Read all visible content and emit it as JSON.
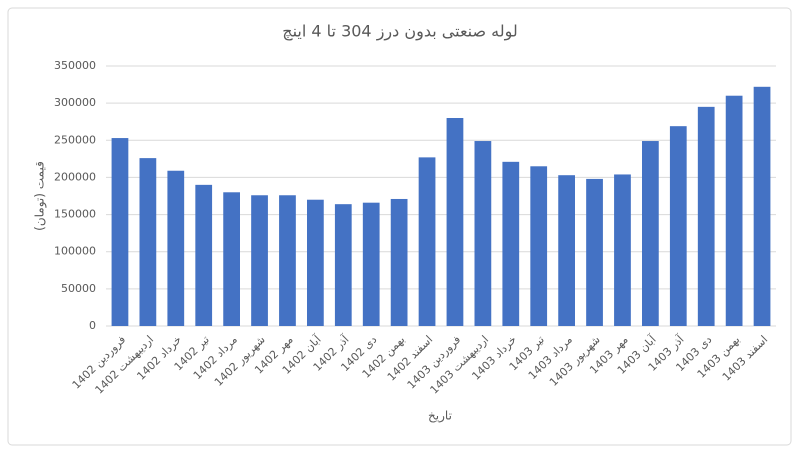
{
  "chart_data": {
    "type": "bar",
    "title": "لوله صنعتی بدون درز 304 تا 4 اینچ",
    "y_label": "قیمت (تومان)",
    "x_label": "تاریخ",
    "categories": [
      "فروردین 1402",
      "اردیبهشت 1402",
      "خرداد 1402",
      "تیر 1402",
      "مرداد 1402",
      "شهریور 1402",
      "مهر 1402",
      "آبان 1402",
      "آذر 1402",
      "دی 1402",
      "بهمن 1402",
      "اسفند 1402",
      "فروردین 1403",
      "اردیبهشت 1403",
      "خرداد 1403",
      "تیر 1403",
      "مرداد 1403",
      "شهریور 1403",
      "مهر 1403",
      "آبان 1403",
      "آذر 1403",
      "دی 1403",
      "بهمن 1403",
      "اسفند 1403"
    ],
    "values": [
      253000,
      226000,
      209000,
      190000,
      180000,
      176000,
      176000,
      170000,
      164000,
      166000,
      171000,
      227000,
      280000,
      249000,
      221000,
      215000,
      203000,
      198000,
      204000,
      249000,
      269000,
      295000,
      310000,
      322000
    ],
    "color": "#4472c4",
    "ylim": [
      0,
      350000
    ],
    "yticks": [
      0,
      50000,
      100000,
      150000,
      200000,
      250000,
      300000,
      350000
    ],
    "grid": true
  }
}
